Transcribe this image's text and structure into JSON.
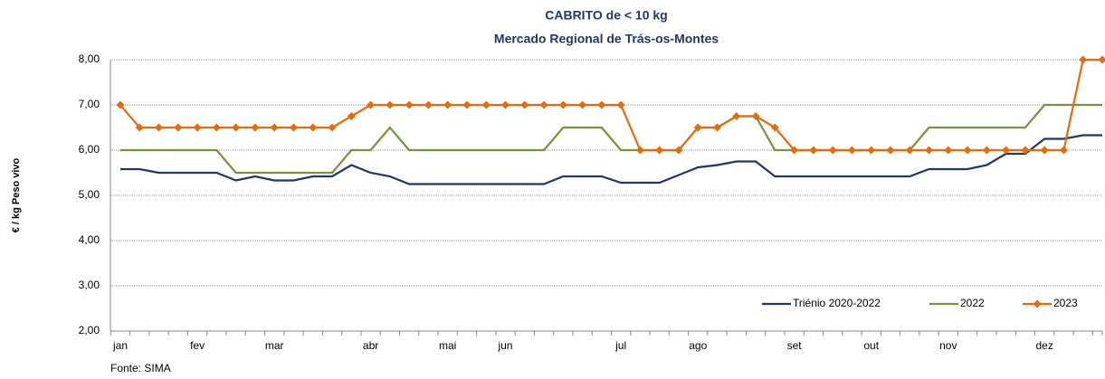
{
  "chart_data": {
    "type": "line",
    "title": "CABRITO de < 10 kg",
    "subtitle": "Mercado Regional de Trás-os-Montes",
    "y_label": "€ / kg Peso vivo",
    "source": "Fonte: SIMA",
    "categories": [
      "jan",
      null,
      null,
      null,
      "fev",
      null,
      null,
      null,
      "mar",
      null,
      null,
      null,
      null,
      "abr",
      null,
      null,
      null,
      "mai",
      null,
      null,
      "jun",
      null,
      null,
      null,
      null,
      null,
      "jul",
      null,
      null,
      null,
      "ago",
      null,
      null,
      null,
      null,
      "set",
      null,
      null,
      null,
      "out",
      null,
      null,
      null,
      "nov",
      null,
      null,
      null,
      null,
      "dez",
      null,
      null,
      null
    ],
    "series": [
      {
        "name": "Triénio 2020-2022",
        "color": "#1f3864",
        "marker": false,
        "values": [
          5.58,
          5.58,
          5.5,
          5.5,
          5.5,
          5.5,
          5.33,
          5.42,
          5.33,
          5.33,
          5.42,
          5.42,
          5.67,
          5.5,
          5.42,
          5.25,
          5.25,
          5.25,
          5.25,
          5.25,
          5.25,
          5.25,
          5.25,
          5.42,
          5.42,
          5.42,
          5.28,
          5.28,
          5.28,
          5.45,
          5.62,
          5.67,
          5.75,
          5.75,
          5.42,
          5.42,
          5.42,
          5.42,
          5.42,
          5.42,
          5.42,
          5.42,
          5.58,
          5.58,
          5.58,
          5.67,
          5.92,
          5.92,
          6.25,
          6.25,
          6.33,
          6.33
        ]
      },
      {
        "name": "2022",
        "color": "#77933c",
        "marker": false,
        "values": [
          6,
          6,
          6,
          6,
          6,
          6,
          5.5,
          5.5,
          5.5,
          5.5,
          5.5,
          5.5,
          6,
          6,
          6.5,
          6,
          6,
          6,
          6,
          6,
          6,
          6,
          6,
          6.5,
          6.5,
          6.5,
          6,
          6,
          6,
          6,
          6.5,
          6.5,
          6.75,
          6.75,
          6,
          6,
          6,
          6,
          6,
          6,
          6,
          6,
          6.5,
          6.5,
          6.5,
          6.5,
          6.5,
          6.5,
          7,
          7,
          7,
          7
        ]
      },
      {
        "name": "2023",
        "color": "#e46c0a",
        "marker": true,
        "values": [
          7,
          6.5,
          6.5,
          6.5,
          6.5,
          6.5,
          6.5,
          6.5,
          6.5,
          6.5,
          6.5,
          6.5,
          6.75,
          7,
          7,
          7,
          7,
          7,
          7,
          7,
          7,
          7,
          7,
          7,
          7,
          7,
          7,
          6,
          6,
          6,
          6.5,
          6.5,
          6.75,
          6.75,
          6.5,
          6,
          6,
          6,
          6,
          6,
          6,
          6,
          6,
          6,
          6,
          6,
          6,
          6,
          6,
          6,
          8,
          8
        ]
      }
    ],
    "ylim": [
      2,
      8
    ],
    "yticks": [
      {
        "value": 2,
        "label": "2,00"
      },
      {
        "value": 3,
        "label": "3,00"
      },
      {
        "value": 4,
        "label": "4,00"
      },
      {
        "value": 5,
        "label": "5,00"
      },
      {
        "value": 6,
        "label": "6,00"
      },
      {
        "value": 7,
        "label": "7,00"
      },
      {
        "value": 8,
        "label": "8,00"
      }
    ],
    "grid": true,
    "legend": "lower right"
  }
}
